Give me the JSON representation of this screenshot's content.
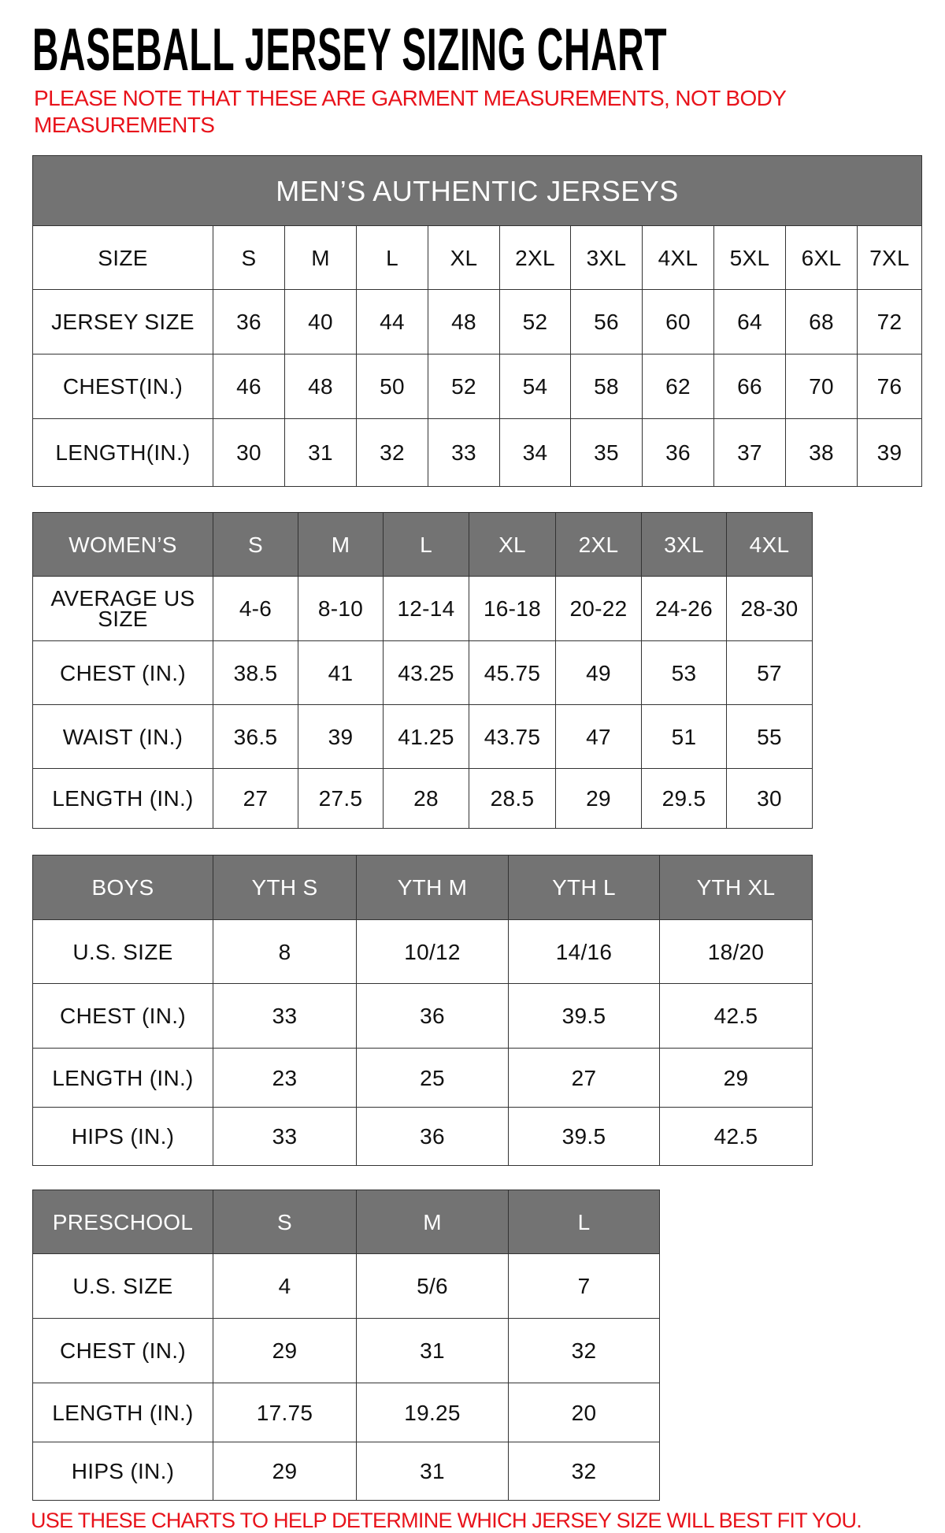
{
  "title": "BASEBALL JERSEY SIZING CHART",
  "note": "PLEASE NOTE THAT THESE ARE GARMENT MEASUREMENTS, NOT BODY MEASUREMENTS",
  "footer": "USE THESE CHARTS TO HELP DETERMINE WHICH JERSEY SIZE WILL BEST FIT YOU.",
  "colors": {
    "header_bg": "#737373",
    "note_red": "#e8131b"
  },
  "tables": [
    {
      "id": "mens",
      "band": "MEN’S AUTHENTIC JERSEYS",
      "rows": [
        [
          "SIZE",
          "S",
          "M",
          "L",
          "XL",
          "2XL",
          "3XL",
          "4XL",
          "5XL",
          "6XL",
          "7XL"
        ],
        [
          "JERSEY SIZE",
          "36",
          "40",
          "44",
          "48",
          "52",
          "56",
          "60",
          "64",
          "68",
          "72"
        ],
        [
          "CHEST(IN.)",
          "46",
          "48",
          "50",
          "52",
          "54",
          "58",
          "62",
          "66",
          "70",
          "76"
        ],
        [
          "LENGTH(IN.)",
          "30",
          "31",
          "32",
          "33",
          "34",
          "35",
          "36",
          "37",
          "38",
          "39"
        ]
      ]
    },
    {
      "id": "womens",
      "rows": [
        [
          "WOMEN’S",
          "S",
          "M",
          "L",
          "XL",
          "2XL",
          "3XL",
          "4XL"
        ],
        [
          "AVERAGE US SIZE",
          "4-6",
          "8-10",
          "12-14",
          "16-18",
          "20-22",
          "24-26",
          "28-30"
        ],
        [
          "CHEST (IN.)",
          "38.5",
          "41",
          "43.25",
          "45.75",
          "49",
          "53",
          "57"
        ],
        [
          "WAIST (IN.)",
          "36.5",
          "39",
          "41.25",
          "43.75",
          "47",
          "51",
          "55"
        ],
        [
          "LENGTH (IN.)",
          "27",
          "27.5",
          "28",
          "28.5",
          "29",
          "29.5",
          "30"
        ]
      ]
    },
    {
      "id": "boys",
      "rows": [
        [
          "BOYS",
          "YTH S",
          "YTH M",
          "YTH L",
          "YTH XL"
        ],
        [
          "U.S. SIZE",
          "8",
          "10/12",
          "14/16",
          "18/20"
        ],
        [
          "CHEST (IN.)",
          "33",
          "36",
          "39.5",
          "42.5"
        ],
        [
          "LENGTH (IN.)",
          "23",
          "25",
          "27",
          "29"
        ],
        [
          "HIPS (IN.)",
          "33",
          "36",
          "39.5",
          "42.5"
        ]
      ]
    },
    {
      "id": "preschool",
      "rows": [
        [
          "PRESCHOOL",
          "S",
          "M",
          "L"
        ],
        [
          "U.S. SIZE",
          "4",
          "5/6",
          "7"
        ],
        [
          "CHEST (IN.)",
          "29",
          "31",
          "32"
        ],
        [
          "LENGTH (IN.)",
          "17.75",
          "19.25",
          "20"
        ],
        [
          "HIPS (IN.)",
          "29",
          "31",
          "32"
        ]
      ]
    }
  ]
}
